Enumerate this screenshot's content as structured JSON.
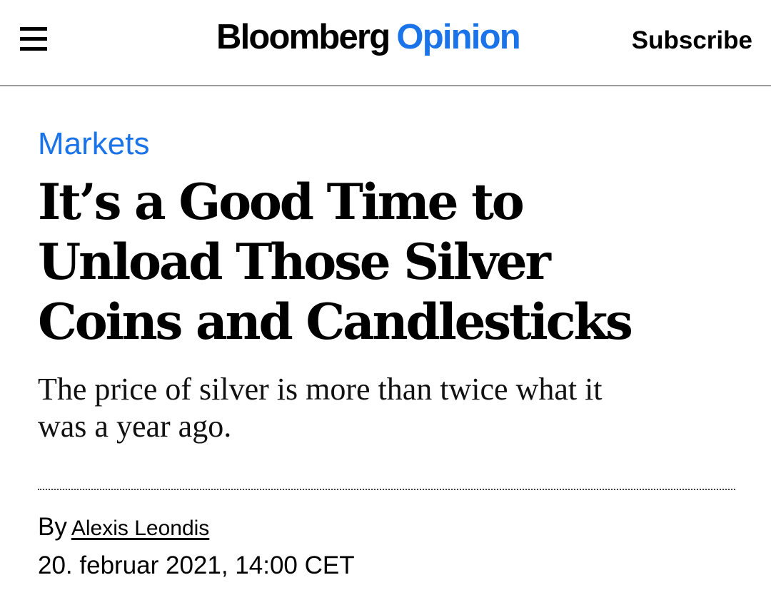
{
  "header": {
    "brand": "Bloomberg",
    "brand_accent": "Opinion",
    "subscribe_label": "Subscribe",
    "menu_icon": "hamburger-menu-icon"
  },
  "article": {
    "section": "Markets",
    "headline_lines": [
      "It’s a Good Time to",
      "Unload Those Silver",
      "Coins and Candlesticks"
    ],
    "dek_lines": [
      "The price of silver is more than twice what it",
      "was a year ago."
    ],
    "byline_prefix": "By",
    "author": "Alexis Leondis",
    "date": "20. februar 2021, 14:00 CET"
  },
  "colors": {
    "accent": "#1a73e8",
    "text": "#000000",
    "divider": "#9a9a9a"
  }
}
